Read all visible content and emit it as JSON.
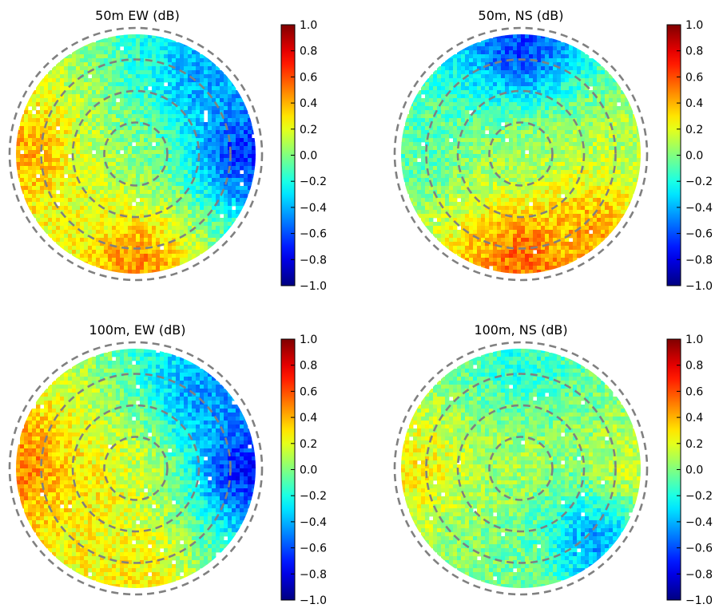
{
  "chart_data": [
    {
      "type": "heatmap",
      "title": "50m EW (dB)",
      "projection": "polar sky map (azimuth/zenith angle)",
      "xlabel": "",
      "ylabel": "",
      "colorbar": {
        "label": "dB",
        "range": [
          -1.0,
          1.0
        ],
        "ticks": [
          "1.0",
          "0.8",
          "0.6",
          "0.4",
          "0.2",
          "0.0",
          "−0.2",
          "−0.4",
          "−0.6",
          "−0.8",
          "−1.0"
        ]
      },
      "ring_count": 4,
      "regions": [
        {
          "area": "center",
          "value": 0.0
        },
        {
          "area": "west edge",
          "value": 0.45
        },
        {
          "area": "south edge",
          "value": 0.55
        },
        {
          "area": "east edge",
          "value": -0.75
        },
        {
          "area": "north-east",
          "value": -0.45
        },
        {
          "area": "south-west interior",
          "value": 0.2
        }
      ]
    },
    {
      "type": "heatmap",
      "title": "50m, NS (dB)",
      "projection": "polar sky map (azimuth/zenith angle)",
      "xlabel": "",
      "ylabel": "",
      "colorbar": {
        "label": "dB",
        "range": [
          -1.0,
          1.0
        ],
        "ticks": [
          "1.0",
          "0.8",
          "0.6",
          "0.4",
          "0.2",
          "0.0",
          "−0.2",
          "−0.4",
          "−0.6",
          "−0.8",
          "−1.0"
        ]
      },
      "ring_count": 4,
      "regions": [
        {
          "area": "center",
          "value": 0.05
        },
        {
          "area": "north edge",
          "value": -0.7
        },
        {
          "area": "south edge",
          "value": 0.6
        },
        {
          "area": "south-east",
          "value": 0.45
        },
        {
          "area": "west edge",
          "value": -0.1
        },
        {
          "area": "east edge",
          "value": 0.1
        }
      ]
    },
    {
      "type": "heatmap",
      "title": "100m, EW (dB)",
      "projection": "polar sky map (azimuth/zenith angle)",
      "xlabel": "",
      "ylabel": "",
      "colorbar": {
        "label": "dB",
        "range": [
          -1.0,
          1.0
        ],
        "ticks": [
          "1.0",
          "0.8",
          "0.6",
          "0.4",
          "0.2",
          "0.0",
          "−0.2",
          "−0.4",
          "−0.6",
          "−0.8",
          "−1.0"
        ]
      },
      "ring_count": 4,
      "regions": [
        {
          "area": "center",
          "value": 0.15
        },
        {
          "area": "west edge",
          "value": 0.55
        },
        {
          "area": "south edge",
          "value": 0.3
        },
        {
          "area": "east edge",
          "value": -0.8
        },
        {
          "area": "north-east",
          "value": -0.5
        },
        {
          "area": "center-left",
          "value": 0.3
        }
      ]
    },
    {
      "type": "heatmap",
      "title": "100m, NS (dB)",
      "projection": "polar sky map (azimuth/zenith angle)",
      "xlabel": "",
      "ylabel": "",
      "colorbar": {
        "label": "dB",
        "range": [
          -1.0,
          1.0
        ],
        "ticks": [
          "1.0",
          "0.8",
          "0.6",
          "0.4",
          "0.2",
          "0.0",
          "−0.2",
          "−0.4",
          "−0.6",
          "−0.8",
          "−1.0"
        ]
      },
      "ring_count": 4,
      "regions": [
        {
          "area": "center",
          "value": 0.1
        },
        {
          "area": "north edge",
          "value": -0.2
        },
        {
          "area": "south-east",
          "value": -0.55
        },
        {
          "area": "west edge",
          "value": 0.3
        },
        {
          "area": "east edge",
          "value": 0.2
        },
        {
          "area": "south edge",
          "value": 0.0
        }
      ]
    }
  ],
  "colors": {
    "ring": "#808080",
    "colormap": "jet",
    "background": "#ffffff"
  }
}
